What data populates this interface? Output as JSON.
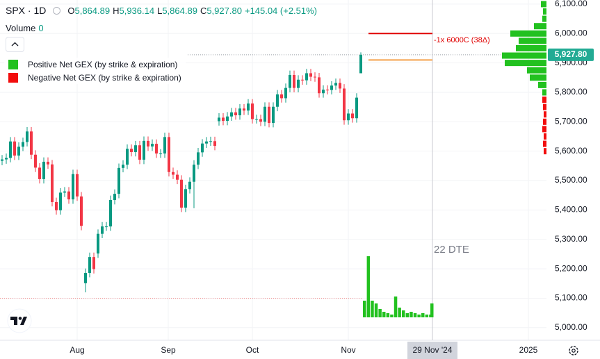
{
  "header": {
    "symbol": "SPX · 1D",
    "ohlc": [
      {
        "label": "O",
        "value": "5,864.89"
      },
      {
        "label": "H",
        "value": "5,936.14"
      },
      {
        "label": "L",
        "value": "5,864.89"
      },
      {
        "label": "C",
        "value": "5,927.80"
      }
    ],
    "change": "+145.04 (+2.51%)",
    "volume_label": "Volume",
    "volume_value": "0"
  },
  "legend": [
    {
      "name": "Positive Net GEX (by strike & expiration)",
      "color": "#22c11f"
    },
    {
      "name": "Negative Net GEX (by strike & expiration)",
      "color": "#f20d0d"
    }
  ],
  "chart_data": {
    "type": "candlestick",
    "up_color": "#089981",
    "down_color": "#f23645",
    "ylim": [
      4957,
      6114
    ],
    "yticks": [
      {
        "value": 5000,
        "label": "5,000.00"
      },
      {
        "value": 5100,
        "label": "5,100.00"
      },
      {
        "value": 5200,
        "label": "5,200.00"
      },
      {
        "value": 5300,
        "label": "5,300.00"
      },
      {
        "value": 5400,
        "label": "5,400.00"
      },
      {
        "value": 5500,
        "label": "5,500.00"
      },
      {
        "value": 5600,
        "label": "5,600.00"
      },
      {
        "value": 5700,
        "label": "5,700.00"
      },
      {
        "value": 5800,
        "label": "5,800.00"
      },
      {
        "value": 5900,
        "label": "5,900.00"
      },
      {
        "value": 6000,
        "label": "6,000.00"
      },
      {
        "value": 6100,
        "label": "6,100.00"
      }
    ],
    "grid": true,
    "x_labels": [
      "Aug",
      "Sep",
      "Oct",
      "Nov",
      "2025"
    ],
    "crosshair_label": "29 Nov '24",
    "last_price": {
      "value": 5927.8,
      "label": "5,927.80",
      "color": "#22ab94"
    },
    "candles": [
      [
        5567,
        5587,
        5552,
        5572
      ],
      [
        5572,
        5592,
        5557,
        5577
      ],
      [
        5577,
        5648,
        5562,
        5633
      ],
      [
        5633,
        5648,
        5570,
        5585
      ],
      [
        5585,
        5630,
        5570,
        5615
      ],
      [
        5615,
        5646,
        5600,
        5631
      ],
      [
        5631,
        5682,
        5616,
        5667
      ],
      [
        5667,
        5682,
        5573,
        5588
      ],
      [
        5588,
        5603,
        5529,
        5544
      ],
      [
        5544,
        5559,
        5490,
        5505
      ],
      [
        5505,
        5579,
        5490,
        5564
      ],
      [
        5564,
        5579,
        5540,
        5555
      ],
      [
        5555,
        5570,
        5412,
        5427
      ],
      [
        5427,
        5442,
        5384,
        5399
      ],
      [
        5399,
        5474,
        5384,
        5459
      ],
      [
        5459,
        5478,
        5444,
        5463
      ],
      [
        5463,
        5478,
        5421,
        5436
      ],
      [
        5436,
        5537,
        5421,
        5522
      ],
      [
        5522,
        5537,
        5431,
        5446
      ],
      [
        5446,
        5461,
        5331,
        5346
      ],
      [
        5151,
        5201,
        5120,
        5186
      ],
      [
        5186,
        5255,
        5171,
        5240
      ],
      [
        5240,
        5255,
        5184,
        5199
      ],
      [
        5252,
        5334,
        5237,
        5319
      ],
      [
        5319,
        5359,
        5304,
        5344
      ],
      [
        5344,
        5359,
        5329,
        5344
      ],
      [
        5344,
        5449,
        5329,
        5434
      ],
      [
        5434,
        5470,
        5419,
        5455
      ],
      [
        5455,
        5558,
        5440,
        5543
      ],
      [
        5543,
        5569,
        5528,
        5554
      ],
      [
        5554,
        5623,
        5539,
        5608
      ],
      [
        5608,
        5623,
        5582,
        5597
      ],
      [
        5597,
        5635,
        5582,
        5620
      ],
      [
        5620,
        5635,
        5556,
        5571
      ],
      [
        5571,
        5650,
        5556,
        5635
      ],
      [
        5635,
        5650,
        5601,
        5616
      ],
      [
        5616,
        5640,
        5601,
        5625
      ],
      [
        5625,
        5640,
        5577,
        5592
      ],
      [
        5592,
        5607,
        5577,
        5592
      ],
      [
        5592,
        5663,
        5577,
        5648
      ],
      [
        5648,
        5663,
        5514,
        5529
      ],
      [
        5529,
        5544,
        5505,
        5520
      ],
      [
        5520,
        5535,
        5488,
        5503
      ],
      [
        5503,
        5518,
        5393,
        5408
      ],
      [
        5408,
        5486,
        5393,
        5471
      ],
      [
        5471,
        5511,
        5456,
        5496
      ],
      [
        5496,
        5569,
        5406,
        5554
      ],
      [
        5554,
        5611,
        5539,
        5596
      ],
      [
        5596,
        5641,
        5581,
        5626
      ],
      [
        5626,
        5648,
        5611,
        5633
      ],
      [
        5633,
        5649,
        5618,
        5634
      ],
      [
        5634,
        5649,
        5603,
        5618
      ],
      [
        5702,
        5729,
        5687,
        5714
      ],
      [
        5714,
        5729,
        5688,
        5703
      ],
      [
        5703,
        5733,
        5688,
        5718
      ],
      [
        5718,
        5747,
        5703,
        5732
      ],
      [
        5732,
        5747,
        5707,
        5722
      ],
      [
        5722,
        5760,
        5707,
        5745
      ],
      [
        5745,
        5760,
        5723,
        5738
      ],
      [
        5738,
        5777,
        5723,
        5762
      ],
      [
        5762,
        5777,
        5694,
        5709
      ],
      [
        5709,
        5724,
        5694,
        5709
      ],
      [
        5709,
        5724,
        5685,
        5700
      ],
      [
        5700,
        5766,
        5685,
        5751
      ],
      [
        5751,
        5766,
        5681,
        5696
      ],
      [
        5696,
        5766,
        5681,
        5751
      ],
      [
        5751,
        5808,
        5736,
        5793
      ],
      [
        5793,
        5808,
        5765,
        5780
      ],
      [
        5780,
        5830,
        5765,
        5815
      ],
      [
        5815,
        5874,
        5800,
        5859
      ],
      [
        5859,
        5874,
        5800,
        5815
      ],
      [
        5815,
        5858,
        5800,
        5843
      ],
      [
        5843,
        5858,
        5826,
        5841
      ],
      [
        5841,
        5880,
        5826,
        5865
      ],
      [
        5865,
        5880,
        5838,
        5853
      ],
      [
        5853,
        5868,
        5836,
        5851
      ],
      [
        5851,
        5866,
        5782,
        5797
      ],
      [
        5797,
        5824,
        5782,
        5809
      ],
      [
        5809,
        5824,
        5793,
        5808
      ],
      [
        5808,
        5838,
        5793,
        5823
      ],
      [
        5823,
        5847,
        5808,
        5832
      ],
      [
        5832,
        5847,
        5798,
        5813
      ],
      [
        5813,
        5828,
        5690,
        5705
      ],
      [
        5705,
        5743,
        5690,
        5728
      ],
      [
        5728,
        5743,
        5697,
        5712
      ],
      [
        5712,
        5797,
        5697,
        5782
      ],
      [
        5864.89,
        5936.14,
        5864.89,
        5927.8
      ]
    ],
    "levels": [
      {
        "value": 6000,
        "color": "#e00000",
        "label": "-1x 6000C (38Δ)"
      },
      {
        "value": 5910,
        "color": "#f5a04a"
      }
    ],
    "hline": {
      "value": 5100,
      "color": "#f28b8b"
    },
    "gex_profile": {
      "strikes": [
        6100,
        6075,
        6050,
        6025,
        6000,
        5975,
        5950,
        5925,
        5900,
        5875,
        5850,
        5825,
        5800,
        5775,
        5750,
        5725,
        5700,
        5675,
        5650,
        5625,
        5600
      ],
      "values": [
        8,
        5,
        6,
        18,
        52,
        40,
        44,
        64,
        60,
        28,
        24,
        12,
        6,
        -6,
        -5,
        -4,
        -5,
        -6,
        -4,
        -5,
        -4
      ]
    },
    "gex_by_expiration": {
      "values": [
        24,
        88,
        24,
        20,
        12,
        8,
        6,
        4,
        30,
        14,
        10,
        6,
        8,
        6,
        4,
        6,
        4,
        4,
        20
      ],
      "label": "22 DTE"
    }
  }
}
